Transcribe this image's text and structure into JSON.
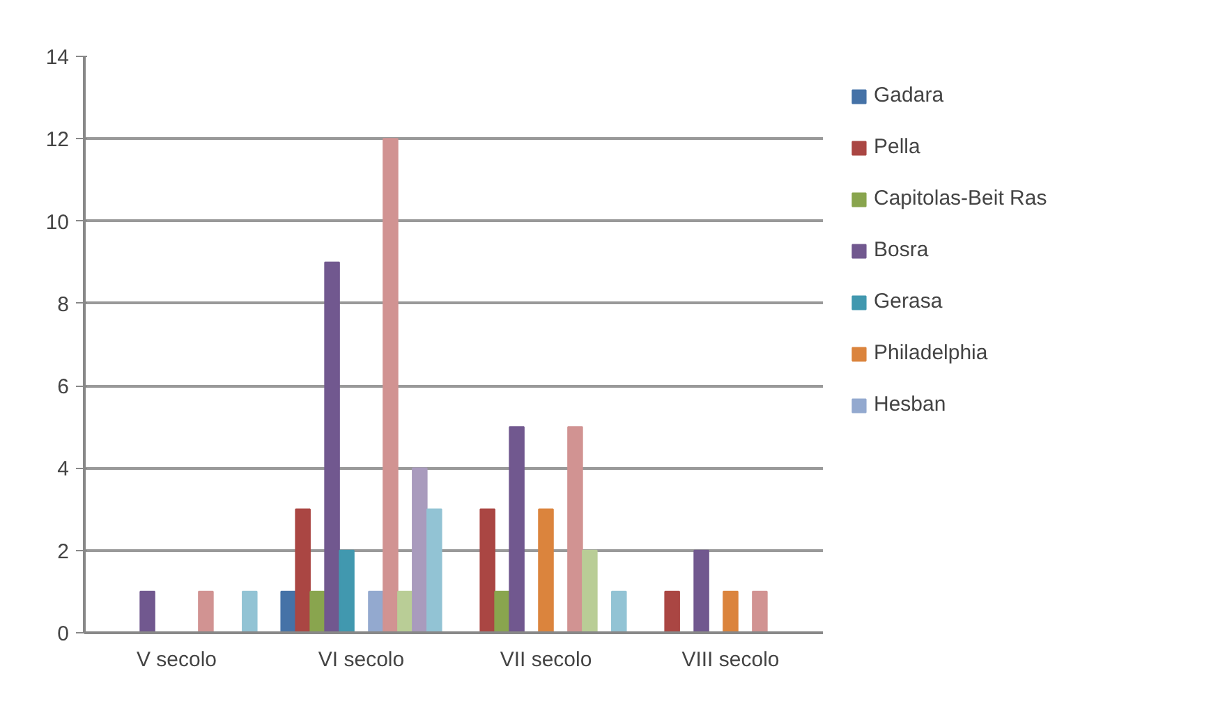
{
  "chart_data": {
    "type": "bar",
    "categories": [
      "V secolo",
      "VI secolo",
      "VII secolo",
      "VIII secolo"
    ],
    "ylim": [
      0,
      14
    ],
    "yticks": [
      0,
      2,
      4,
      6,
      8,
      10,
      12,
      14
    ],
    "grid": "y",
    "legend": "right",
    "series": [
      {
        "name": "Gadara",
        "color": "#4572a7",
        "values": [
          0,
          1,
          0,
          0
        ]
      },
      {
        "name": "Pella",
        "color": "#aa4643",
        "values": [
          0,
          3,
          3,
          1
        ]
      },
      {
        "name": "Capitolas-Beit Ras",
        "color": "#89a54e",
        "values": [
          0,
          1,
          1,
          0
        ]
      },
      {
        "name": "Bosra",
        "color": "#71588f",
        "values": [
          1,
          9,
          5,
          2
        ]
      },
      {
        "name": "Gerasa",
        "color": "#4198af",
        "values": [
          0,
          2,
          0,
          0
        ]
      },
      {
        "name": "Philadelphia",
        "color": "#db843d",
        "values": [
          0,
          0,
          3,
          1
        ]
      },
      {
        "name": "Hesban",
        "color": "#93a9cf",
        "values": [
          0,
          1,
          0,
          0
        ]
      },
      {
        "color": "#d19392",
        "values": [
          1,
          12,
          5,
          1
        ]
      },
      {
        "color": "#b9cd96",
        "values": [
          0,
          1,
          2,
          0
        ]
      },
      {
        "color": "#a99bbd",
        "values": [
          0,
          4,
          0,
          0
        ]
      },
      {
        "color": "#92c3d4",
        "values": [
          1,
          3,
          1,
          0
        ]
      }
    ]
  }
}
